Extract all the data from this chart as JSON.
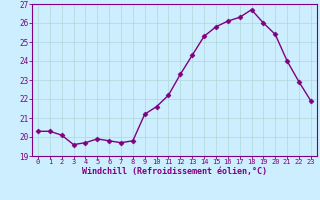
{
  "hours": [
    0,
    1,
    2,
    3,
    4,
    5,
    6,
    7,
    8,
    9,
    10,
    11,
    12,
    13,
    14,
    15,
    16,
    17,
    18,
    19,
    20,
    21,
    22,
    23
  ],
  "values": [
    20.3,
    20.3,
    20.1,
    19.6,
    19.7,
    19.9,
    19.8,
    19.7,
    19.8,
    21.2,
    21.6,
    22.2,
    23.3,
    24.3,
    25.3,
    25.8,
    26.1,
    26.3,
    26.7,
    26.0,
    25.4,
    24.0,
    22.9,
    21.9
  ],
  "line_color": "#800080",
  "marker": "D",
  "markersize": 2.5,
  "linewidth": 1.0,
  "bg_color": "#cceeff",
  "grid_color": "#b0d8d8",
  "xlabel": "Windchill (Refroidissement éolien,°C)",
  "xlabel_color": "#800080",
  "tick_color": "#800080",
  "spine_color": "#800080",
  "ylim": [
    19,
    27
  ],
  "xlim": [
    -0.5,
    23.5
  ],
  "yticks": [
    19,
    20,
    21,
    22,
    23,
    24,
    25,
    26,
    27
  ],
  "xticks": [
    0,
    1,
    2,
    3,
    4,
    5,
    6,
    7,
    8,
    9,
    10,
    11,
    12,
    13,
    14,
    15,
    16,
    17,
    18,
    19,
    20,
    21,
    22,
    23
  ]
}
